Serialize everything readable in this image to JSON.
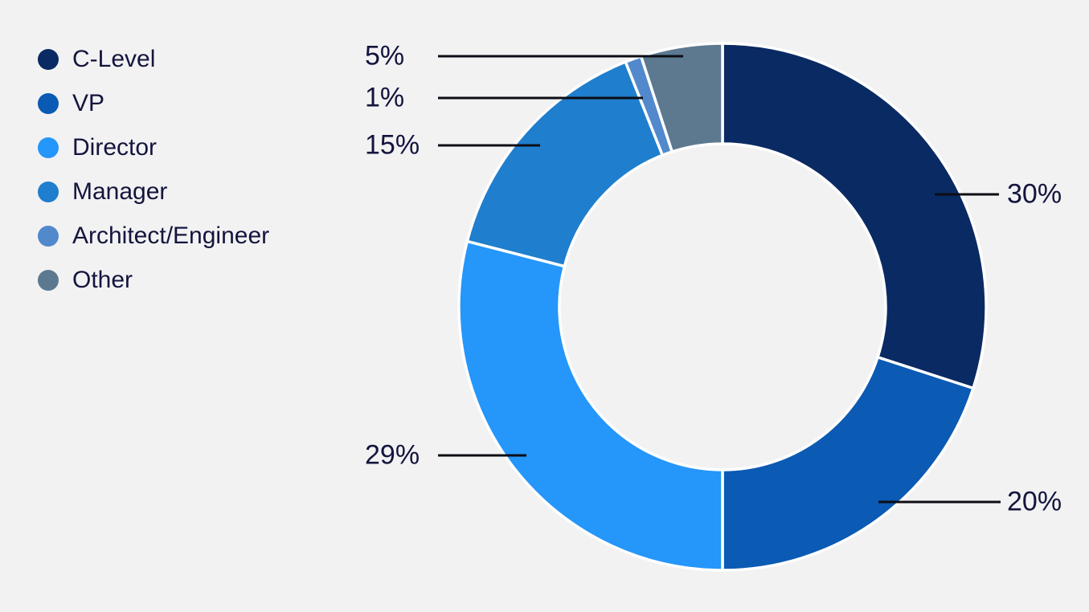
{
  "page": {
    "background": "#f2f2f3",
    "text_color": "#13153c"
  },
  "chart_data": {
    "type": "pie",
    "subtype": "donut",
    "categories": [
      "C-Level",
      "VP",
      "Director",
      "Manager",
      "Architect/Engineer",
      "Other"
    ],
    "values": [
      30,
      20,
      29,
      15,
      1,
      5
    ],
    "unit": "%",
    "callout_labels": [
      "30%",
      "20%",
      "29%",
      "15%",
      "1%",
      "5%"
    ],
    "colors": [
      "#0a2a63",
      "#0b5ab4",
      "#2596fa",
      "#1f7ecd",
      "#5289cd",
      "#5c7990"
    ],
    "legend_position": "top-left",
    "start_angle_deg": 0,
    "direction": "clockwise",
    "inner_radius_ratio": 0.62,
    "separator_color": "#ffffff",
    "callout_line_color": "#0d0d14"
  }
}
